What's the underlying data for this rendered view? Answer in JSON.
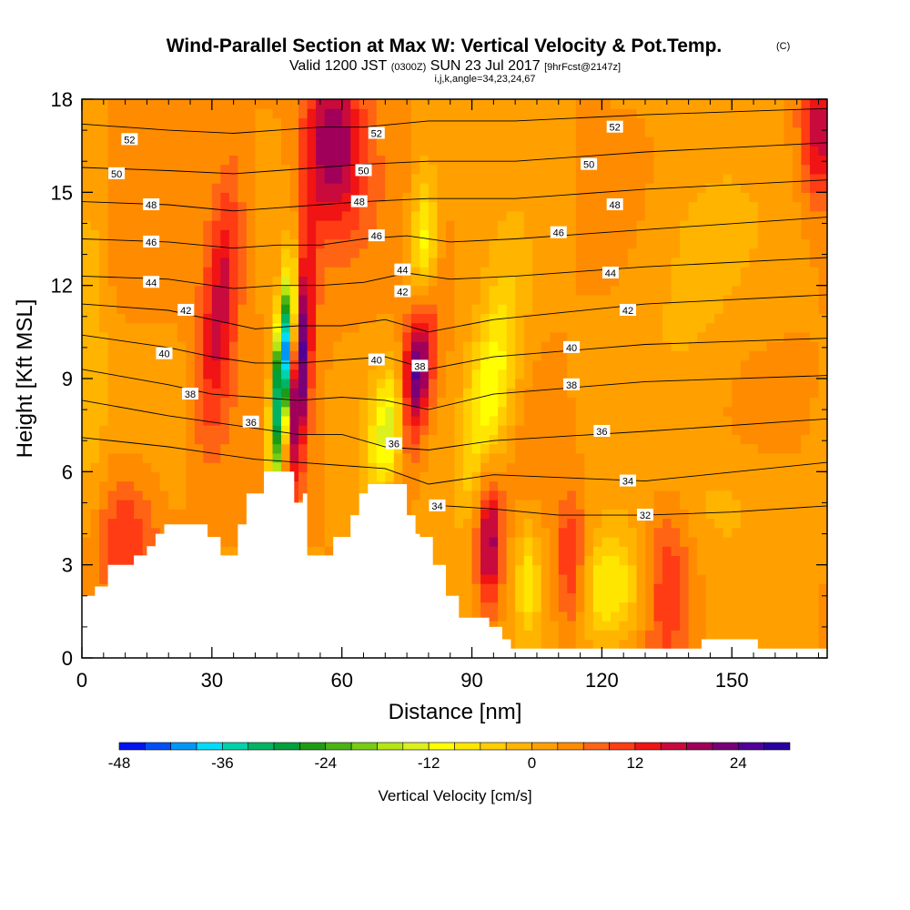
{
  "header": {
    "title": "Wind-Parallel Section at Max W: Vertical Velocity & Pot.Temp.",
    "copyright": "(C)",
    "valid_prefix": "Valid 1200 JST",
    "valid_utc": "(0300Z)",
    "valid_date": "SUN 23 Jul 2017",
    "forecast": "[9hrFcst@2147z]",
    "indices": "i,j,k,angle=34,23,24,67"
  },
  "chart_data": {
    "type": "heatmap",
    "xlabel": "Distance [nm]",
    "ylabel": "Height [Kft MSL]",
    "xlim": [
      0,
      172
    ],
    "ylim": [
      0,
      18
    ],
    "x_ticks": [
      0,
      30,
      60,
      90,
      120,
      150
    ],
    "y_ticks": [
      0,
      3,
      6,
      9,
      12,
      15,
      18
    ],
    "x_tick_labels": [
      "0",
      "30",
      "60",
      "90",
      "120",
      "150"
    ],
    "y_tick_labels": [
      "0",
      "3",
      "6",
      "9",
      "12",
      "15",
      "18"
    ],
    "background_level_cms": 3,
    "vertical_velocity_features": [
      {
        "x": 46,
        "y": 8.5,
        "sx": 1.5,
        "sy": 2.2,
        "w": -42,
        "tilt": 0.16
      },
      {
        "x": 47.5,
        "y": 10.5,
        "sx": 1.5,
        "sy": 1.5,
        "w": -18,
        "tilt": 0.16
      },
      {
        "x": 50,
        "y": 9.5,
        "sx": 2.0,
        "sy": 2.8,
        "w": 24,
        "tilt": 0.16
      },
      {
        "x": 58,
        "y": 16.5,
        "sx": 5.0,
        "sy": 2.0,
        "w": 18
      },
      {
        "x": 77,
        "y": 9.0,
        "sx": 2.6,
        "sy": 1.9,
        "w": 30,
        "tilt": 0.3
      },
      {
        "x": 72,
        "y": 7.5,
        "sx": 3.5,
        "sy": 1.4,
        "w": -20,
        "tilt": 0.3
      },
      {
        "x": 79,
        "y": 13.0,
        "sx": 2.2,
        "sy": 2.0,
        "w": -15
      },
      {
        "x": 94,
        "y": 8.5,
        "sx": 4.0,
        "sy": 2.5,
        "w": -16,
        "tilt": 0.35
      },
      {
        "x": 94,
        "y": 3.8,
        "sx": 2.0,
        "sy": 1.6,
        "w": 18
      },
      {
        "x": 32,
        "y": 11.5,
        "sx": 3.0,
        "sy": 3.0,
        "w": 14,
        "tilt": 0.2
      },
      {
        "x": 122,
        "y": 2.2,
        "sx": 6.0,
        "sy": 1.3,
        "w": -13
      },
      {
        "x": 103,
        "y": 2.5,
        "sx": 2.0,
        "sy": 1.3,
        "w": -10
      },
      {
        "x": 113,
        "y": 3.0,
        "sx": 2.5,
        "sy": 1.5,
        "w": 12
      },
      {
        "x": 135,
        "y": 2.5,
        "sx": 4.0,
        "sy": 2.0,
        "w": 9
      },
      {
        "x": 2,
        "y": 10.0,
        "sx": 2.5,
        "sy": 4.0,
        "w": -6
      },
      {
        "x": 170,
        "y": 17.0,
        "sx": 3.0,
        "sy": 1.5,
        "w": 14
      },
      {
        "x": 10,
        "y": 4.0,
        "sx": 5.0,
        "sy": 1.5,
        "w": 9
      },
      {
        "x": 140,
        "y": 12.5,
        "sx": 10.0,
        "sy": 3.0,
        "w": -4
      },
      {
        "x": 150,
        "y": 5.0,
        "sx": 12.0,
        "sy": 1.5,
        "w": -4
      }
    ],
    "terrain": [
      [
        0,
        2.0
      ],
      [
        3,
        2.0
      ],
      [
        3,
        2.3
      ],
      [
        6,
        2.3
      ],
      [
        6,
        3.0
      ],
      [
        12,
        3.0
      ],
      [
        12,
        3.3
      ],
      [
        15,
        3.3
      ],
      [
        15,
        3.6
      ],
      [
        17,
        3.6
      ],
      [
        17,
        4.0
      ],
      [
        19,
        4.0
      ],
      [
        19,
        4.3
      ],
      [
        29,
        4.3
      ],
      [
        29,
        3.9
      ],
      [
        32,
        3.9
      ],
      [
        32,
        3.3
      ],
      [
        36,
        3.3
      ],
      [
        36,
        4.3
      ],
      [
        38,
        4.3
      ],
      [
        38,
        5.3
      ],
      [
        42,
        5.3
      ],
      [
        42,
        6.0
      ],
      [
        49,
        6.0
      ],
      [
        49,
        5.0
      ],
      [
        51,
        5.0
      ],
      [
        51,
        5.3
      ],
      [
        52,
        5.3
      ],
      [
        52,
        3.3
      ],
      [
        58,
        3.3
      ],
      [
        58,
        3.9
      ],
      [
        62,
        3.9
      ],
      [
        62,
        4.6
      ],
      [
        64,
        4.6
      ],
      [
        64,
        5.3
      ],
      [
        66,
        5.3
      ],
      [
        66,
        5.6
      ],
      [
        75,
        5.6
      ],
      [
        75,
        4.6
      ],
      [
        77,
        4.6
      ],
      [
        77,
        4.0
      ],
      [
        78,
        4.0
      ],
      [
        78,
        3.9
      ],
      [
        81,
        3.9
      ],
      [
        81,
        3.0
      ],
      [
        84,
        3.0
      ],
      [
        84,
        2.0
      ],
      [
        87,
        2.0
      ],
      [
        87,
        1.3
      ],
      [
        94,
        1.3
      ],
      [
        94,
        1.0
      ],
      [
        97,
        1.0
      ],
      [
        97,
        0.6
      ],
      [
        99,
        0.6
      ],
      [
        99,
        0.3
      ],
      [
        143,
        0.3
      ],
      [
        143,
        0.6
      ],
      [
        156,
        0.6
      ],
      [
        156,
        0.3
      ],
      [
        172,
        0.3
      ]
    ],
    "theta_contours": [
      {
        "level": 52,
        "pts": [
          [
            0,
            17.2
          ],
          [
            20,
            17.0
          ],
          [
            35,
            16.9
          ],
          [
            45,
            17.0
          ],
          [
            55,
            17.1
          ],
          [
            65,
            17.1
          ],
          [
            80,
            17.3
          ],
          [
            100,
            17.3
          ],
          [
            130,
            17.5
          ],
          [
            172,
            17.7
          ]
        ]
      },
      {
        "level": 50,
        "pts": [
          [
            0,
            15.8
          ],
          [
            20,
            15.7
          ],
          [
            35,
            15.6
          ],
          [
            45,
            15.7
          ],
          [
            55,
            15.8
          ],
          [
            65,
            15.9
          ],
          [
            80,
            16.0
          ],
          [
            100,
            16.0
          ],
          [
            130,
            16.3
          ],
          [
            172,
            16.6
          ]
        ]
      },
      {
        "level": 48,
        "pts": [
          [
            0,
            14.7
          ],
          [
            20,
            14.6
          ],
          [
            35,
            14.4
          ],
          [
            45,
            14.5
          ],
          [
            55,
            14.6
          ],
          [
            65,
            14.7
          ],
          [
            80,
            14.8
          ],
          [
            100,
            14.8
          ],
          [
            130,
            15.1
          ],
          [
            172,
            15.4
          ]
        ]
      },
      {
        "level": 46,
        "pts": [
          [
            0,
            13.5
          ],
          [
            20,
            13.4
          ],
          [
            35,
            13.2
          ],
          [
            45,
            13.3
          ],
          [
            55,
            13.3
          ],
          [
            65,
            13.5
          ],
          [
            75,
            13.6
          ],
          [
            85,
            13.4
          ],
          [
            100,
            13.5
          ],
          [
            130,
            13.8
          ],
          [
            172,
            14.2
          ]
        ]
      },
      {
        "level": 44,
        "pts": [
          [
            0,
            12.3
          ],
          [
            20,
            12.2
          ],
          [
            35,
            11.9
          ],
          [
            45,
            12.0
          ],
          [
            55,
            12.0
          ],
          [
            65,
            12.1
          ],
          [
            75,
            12.4
          ],
          [
            85,
            12.2
          ],
          [
            100,
            12.3
          ],
          [
            130,
            12.6
          ],
          [
            172,
            12.9
          ]
        ]
      },
      {
        "level": 42,
        "pts": [
          [
            0,
            11.4
          ],
          [
            20,
            11.2
          ],
          [
            30,
            10.9
          ],
          [
            40,
            10.6
          ],
          [
            50,
            10.7
          ],
          [
            60,
            10.7
          ],
          [
            70,
            10.9
          ],
          [
            80,
            10.5
          ],
          [
            95,
            10.9
          ],
          [
            130,
            11.4
          ],
          [
            172,
            11.7
          ]
        ]
      },
      {
        "level": 40,
        "pts": [
          [
            0,
            10.4
          ],
          [
            20,
            10.0
          ],
          [
            30,
            9.7
          ],
          [
            40,
            9.5
          ],
          [
            50,
            9.5
          ],
          [
            60,
            9.6
          ],
          [
            70,
            9.7
          ],
          [
            80,
            9.3
          ],
          [
            95,
            9.7
          ],
          [
            130,
            10.1
          ],
          [
            172,
            10.3
          ]
        ]
      },
      {
        "level": 38,
        "pts": [
          [
            0,
            9.3
          ],
          [
            20,
            8.8
          ],
          [
            30,
            8.5
          ],
          [
            40,
            8.4
          ],
          [
            50,
            8.3
          ],
          [
            60,
            8.4
          ],
          [
            70,
            8.3
          ],
          [
            80,
            8.0
          ],
          [
            95,
            8.5
          ],
          [
            130,
            8.9
          ],
          [
            172,
            9.1
          ]
        ]
      },
      {
        "level": 36,
        "pts": [
          [
            0,
            8.3
          ],
          [
            20,
            7.8
          ],
          [
            30,
            7.6
          ],
          [
            40,
            7.4
          ],
          [
            50,
            7.2
          ],
          [
            60,
            7.2
          ],
          [
            70,
            6.8
          ],
          [
            80,
            6.7
          ],
          [
            95,
            7.0
          ],
          [
            130,
            7.3
          ],
          [
            172,
            7.7
          ]
        ]
      },
      {
        "level": 34,
        "pts": [
          [
            0,
            7.1
          ],
          [
            20,
            6.8
          ],
          [
            30,
            6.6
          ],
          [
            40,
            6.4
          ],
          [
            50,
            6.3
          ],
          [
            60,
            6.2
          ],
          [
            70,
            6.1
          ],
          [
            80,
            5.6
          ],
          [
            95,
            5.9
          ],
          [
            130,
            5.7
          ],
          [
            172,
            6.3
          ]
        ]
      },
      {
        "level": 32,
        "pts": [
          [
            84,
            4.9
          ],
          [
            95,
            4.8
          ],
          [
            110,
            4.6
          ],
          [
            130,
            4.6
          ],
          [
            150,
            4.7
          ],
          [
            172,
            4.9
          ]
        ]
      }
    ],
    "contour_labels": [
      {
        "text": "52",
        "x": 11,
        "y": 16.7
      },
      {
        "text": "50",
        "x": 8,
        "y": 15.6
      },
      {
        "text": "48",
        "x": 16,
        "y": 14.6
      },
      {
        "text": "46",
        "x": 16,
        "y": 13.4
      },
      {
        "text": "44",
        "x": 16,
        "y": 12.1
      },
      {
        "text": "42",
        "x": 24,
        "y": 11.2
      },
      {
        "text": "40",
        "x": 19,
        "y": 9.8
      },
      {
        "text": "38",
        "x": 25,
        "y": 8.5
      },
      {
        "text": "36",
        "x": 39,
        "y": 7.6
      },
      {
        "text": "52",
        "x": 68,
        "y": 16.9
      },
      {
        "text": "50",
        "x": 65,
        "y": 15.7
      },
      {
        "text": "48",
        "x": 64,
        "y": 14.7
      },
      {
        "text": "46",
        "x": 68,
        "y": 13.6
      },
      {
        "text": "44",
        "x": 74,
        "y": 12.5
      },
      {
        "text": "42",
        "x": 74,
        "y": 11.8
      },
      {
        "text": "40",
        "x": 68,
        "y": 9.6
      },
      {
        "text": "38",
        "x": 78,
        "y": 9.4
      },
      {
        "text": "36",
        "x": 72,
        "y": 6.9
      },
      {
        "text": "34",
        "x": 82,
        "y": 4.9
      },
      {
        "text": "52",
        "x": 123,
        "y": 17.1
      },
      {
        "text": "50",
        "x": 117,
        "y": 15.9
      },
      {
        "text": "48",
        "x": 123,
        "y": 14.6
      },
      {
        "text": "46",
        "x": 110,
        "y": 13.7
      },
      {
        "text": "44",
        "x": 122,
        "y": 12.4
      },
      {
        "text": "42",
        "x": 126,
        "y": 11.2
      },
      {
        "text": "40",
        "x": 113,
        "y": 10.0
      },
      {
        "text": "38",
        "x": 113,
        "y": 8.8
      },
      {
        "text": "36",
        "x": 120,
        "y": 7.3
      },
      {
        "text": "34",
        "x": 126,
        "y": 5.7
      },
      {
        "text": "32",
        "x": 130,
        "y": 4.6
      }
    ]
  },
  "colorbar": {
    "title": "Vertical Velocity [cm/s]",
    "levels": [
      -48,
      -45,
      -42,
      -39,
      -36,
      -33,
      -30,
      -27,
      -24,
      -21,
      -18,
      -15,
      -12,
      -9,
      -6,
      -3,
      0,
      3,
      6,
      9,
      12,
      15,
      18,
      21,
      24,
      27,
      30
    ],
    "colors": [
      "#0014f0",
      "#0050f8",
      "#0096f8",
      "#00dcf8",
      "#00d2aa",
      "#00b464",
      "#00a03c",
      "#1e9b14",
      "#4bb414",
      "#78cd14",
      "#b4e614",
      "#dcf01e",
      "#ffff00",
      "#ffe600",
      "#ffcd00",
      "#ffb400",
      "#ffa000",
      "#ff8c00",
      "#ff6414",
      "#ff3c14",
      "#f01414",
      "#c80a3c",
      "#a0005a",
      "#780078",
      "#500096",
      "#2800a0"
    ],
    "tick_labels": [
      "-48",
      "-36",
      "-24",
      "-12",
      "0",
      "12",
      "24"
    ],
    "tick_values": [
      -48,
      -36,
      -24,
      -12,
      0,
      12,
      24
    ]
  }
}
